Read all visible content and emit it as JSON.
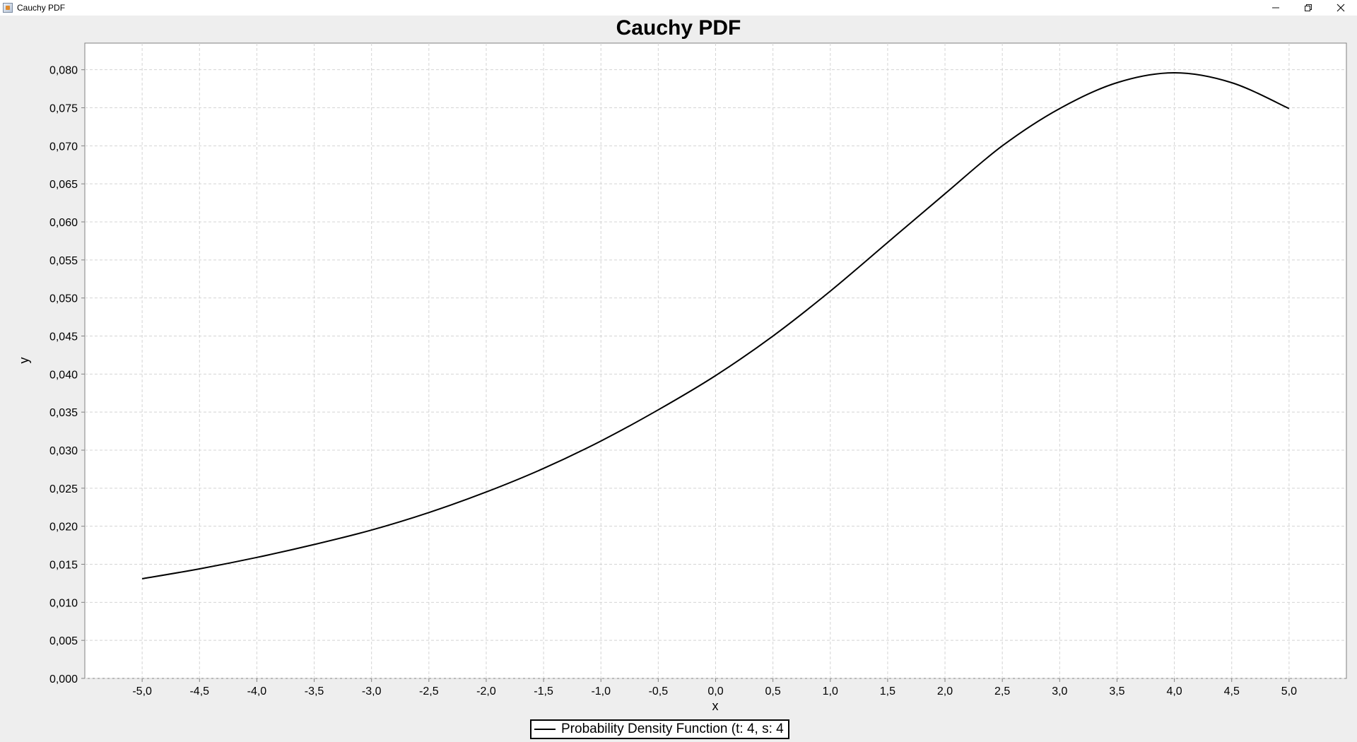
{
  "window": {
    "title": "Cauchy PDF",
    "controls": {
      "minimize_icon": "minimize-icon",
      "restore_icon": "restore-icon",
      "close_icon": "close-icon"
    }
  },
  "chart_data": {
    "type": "line",
    "title": "Cauchy PDF",
    "xlabel": "x",
    "ylabel": "y",
    "xlim": [
      -5.5,
      5.5
    ],
    "ylim": [
      0.0,
      0.0835
    ],
    "grid": true,
    "legend_position": "bottom-center",
    "x_ticks": [
      "-5,0",
      "-4,5",
      "-4,0",
      "-3,5",
      "-3,0",
      "-2,5",
      "-2,0",
      "-1,5",
      "-1,0",
      "-0,5",
      "0,0",
      "0,5",
      "1,0",
      "1,5",
      "2,0",
      "2,5",
      "3,0",
      "3,5",
      "4,0",
      "4,5",
      "5,0"
    ],
    "y_ticks": [
      "0,000",
      "0,005",
      "0,010",
      "0,015",
      "0,020",
      "0,025",
      "0,030",
      "0,035",
      "0,040",
      "0,045",
      "0,050",
      "0,055",
      "0,060",
      "0,065",
      "0,070",
      "0,075",
      "0,080"
    ],
    "series": [
      {
        "name": "Probability Density Function (t: 4, s: 4",
        "color": "#000000",
        "x": [
          -5.0,
          -4.5,
          -4.0,
          -3.5,
          -3.0,
          -2.5,
          -2.0,
          -1.5,
          -1.0,
          -0.5,
          0.0,
          0.5,
          1.0,
          1.5,
          2.0,
          2.5,
          3.0,
          3.5,
          4.0,
          4.5,
          5.0
        ],
        "y": [
          0.0131,
          0.0144,
          0.0159,
          0.0176,
          0.0195,
          0.0218,
          0.0245,
          0.0276,
          0.0312,
          0.0353,
          0.0398,
          0.045,
          0.0509,
          0.0573,
          0.0637,
          0.07,
          0.0749,
          0.0783,
          0.0796,
          0.0783,
          0.0749
        ]
      }
    ]
  }
}
